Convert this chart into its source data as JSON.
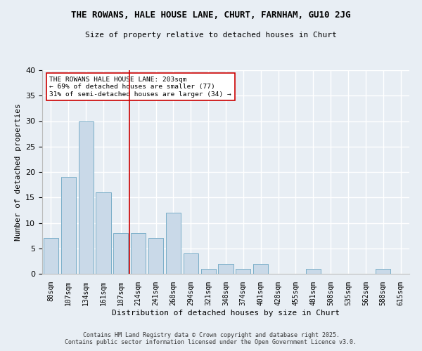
{
  "title": "THE ROWANS, HALE HOUSE LANE, CHURT, FARNHAM, GU10 2JG",
  "subtitle": "Size of property relative to detached houses in Churt",
  "xlabel": "Distribution of detached houses by size in Churt",
  "ylabel": "Number of detached properties",
  "categories": [
    "80sqm",
    "107sqm",
    "134sqm",
    "161sqm",
    "187sqm",
    "214sqm",
    "241sqm",
    "268sqm",
    "294sqm",
    "321sqm",
    "348sqm",
    "374sqm",
    "401sqm",
    "428sqm",
    "455sqm",
    "481sqm",
    "508sqm",
    "535sqm",
    "562sqm",
    "588sqm",
    "615sqm"
  ],
  "values": [
    7,
    19,
    30,
    16,
    8,
    8,
    7,
    12,
    4,
    1,
    2,
    1,
    2,
    0,
    0,
    1,
    0,
    0,
    0,
    1,
    0
  ],
  "bar_color": "#c9d9e8",
  "bar_edge_color": "#7aaec8",
  "ylim": [
    0,
    40
  ],
  "yticks": [
    0,
    5,
    10,
    15,
    20,
    25,
    30,
    35,
    40
  ],
  "vline_x": 4.5,
  "vline_color": "#cc0000",
  "annotation_text": "THE ROWANS HALE HOUSE LANE: 203sqm\n← 69% of detached houses are smaller (77)\n31% of semi-detached houses are larger (34) →",
  "footer_text": "Contains HM Land Registry data © Crown copyright and database right 2025.\nContains public sector information licensed under the Open Government Licence v3.0.",
  "bg_color": "#e8eef4",
  "plot_bg_color": "#e8eef4",
  "grid_color": "#ffffff"
}
